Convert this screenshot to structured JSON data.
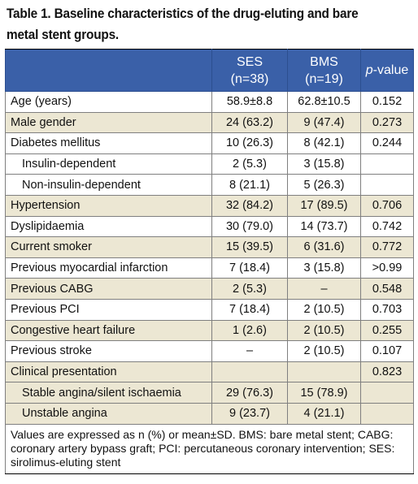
{
  "caption": "Table 1. Baseline characteristics of the drug-eluting and bare metal stent groups.",
  "headers": {
    "col2_line1": "SES",
    "col2_line2": "(n=38)",
    "col3_line1": "BMS",
    "col3_line2": "(n=19)",
    "col4_p": "p",
    "col4_rest": "-value"
  },
  "rows": [
    {
      "label": "Age (years)",
      "ses": "58.9±8.8",
      "bms": "62.8±10.5",
      "p": "0.152"
    },
    {
      "label": "Male gender",
      "ses": "24 (63.2)",
      "bms": "9 (47.4)",
      "p": "0.273"
    },
    {
      "label": "Diabetes mellitus",
      "ses": "10 (26.3)",
      "bms": "8 (42.1)",
      "p": "0.244"
    },
    {
      "label": "Insulin-dependent",
      "ses": "2 (5.3)",
      "bms": "3 (15.8)",
      "p": ""
    },
    {
      "label": "Non-insulin-dependent",
      "ses": "8 (21.1)",
      "bms": "5 (26.3)",
      "p": ""
    },
    {
      "label": "Hypertension",
      "ses": "32 (84.2)",
      "bms": "17 (89.5)",
      "p": "0.706"
    },
    {
      "label": "Dyslipidaemia",
      "ses": "30 (79.0)",
      "bms": "14 (73.7)",
      "p": "0.742"
    },
    {
      "label": "Current smoker",
      "ses": "15 (39.5)",
      "bms": "6 (31.6)",
      "p": "0.772"
    },
    {
      "label": "Previous myocardial infarction",
      "ses": "7 (18.4)",
      "bms": "3 (15.8)",
      "p": ">0.99"
    },
    {
      "label": "Previous CABG",
      "ses": "2 (5.3)",
      "bms": "–",
      "p": "0.548"
    },
    {
      "label": "Previous PCI",
      "ses": "7 (18.4)",
      "bms": "2 (10.5)",
      "p": "0.703"
    },
    {
      "label": "Congestive heart failure",
      "ses": "1 (2.6)",
      "bms": "2 (10.5)",
      "p": "0.255"
    },
    {
      "label": "Previous stroke",
      "ses": "–",
      "bms": "2 (10.5)",
      "p": "0.107"
    },
    {
      "label": "Clinical presentation",
      "ses": "",
      "bms": "",
      "p": "0.823"
    },
    {
      "label": "Stable angina/silent ischaemia",
      "ses": "29 (76.3)",
      "bms": "15 (78.9)",
      "p": ""
    },
    {
      "label": "Unstable angina",
      "ses": "9 (23.7)",
      "bms": "4 (21.1)",
      "p": ""
    }
  ],
  "footnote": "Values are expressed as n (%) or mean±SD. BMS: bare metal stent; CABG: coronary artery bypass graft; PCI: percutaneous coronary intervention; SES: sirolimus-eluting stent",
  "colors": {
    "header_bg": "#3a60a8",
    "tan_row": "#ece7d3"
  }
}
